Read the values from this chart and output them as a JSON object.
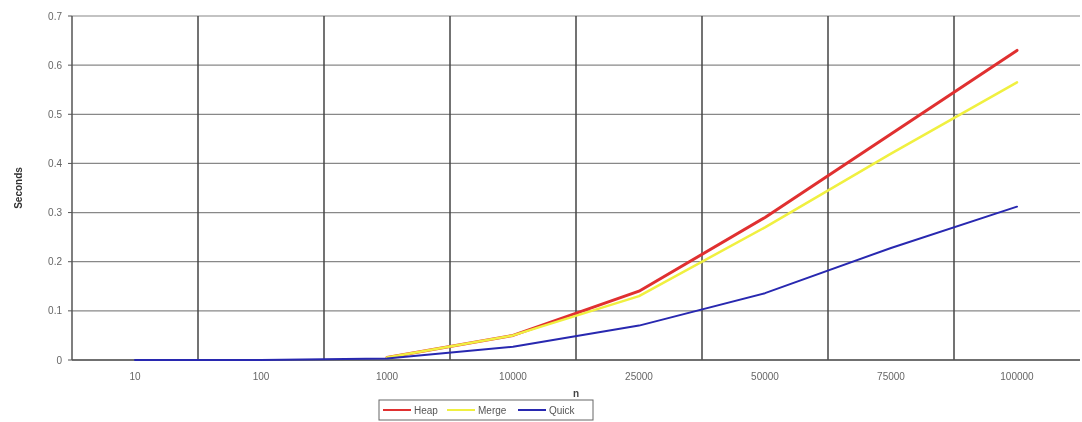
{
  "chart_data": {
    "type": "line",
    "xlabel": "n",
    "ylabel": "Seconds",
    "categories": [
      "10",
      "100",
      "1000",
      "10000",
      "25000",
      "50000",
      "75000",
      "100000"
    ],
    "series": [
      {
        "name": "Heap",
        "color": "#e03030",
        "values": [
          null,
          null,
          0.005,
          0.05,
          0.14,
          0.29,
          0.46,
          0.63
        ]
      },
      {
        "name": "Merge",
        "color": "#f0f040",
        "values": [
          null,
          null,
          0.005,
          0.05,
          0.13,
          0.27,
          0.42,
          0.565
        ]
      },
      {
        "name": "Quick",
        "color": "#2828b0",
        "values": [
          0,
          0,
          0.003,
          0.027,
          0.07,
          0.136,
          0.228,
          0.312
        ]
      }
    ],
    "ylim": [
      0,
      0.7
    ],
    "yticks": [
      0,
      0.1,
      0.2,
      0.3,
      0.4,
      0.5,
      0.6,
      0.7
    ],
    "grid": true,
    "legend": "bottom",
    "marker": "none",
    "line_style": "solid"
  }
}
